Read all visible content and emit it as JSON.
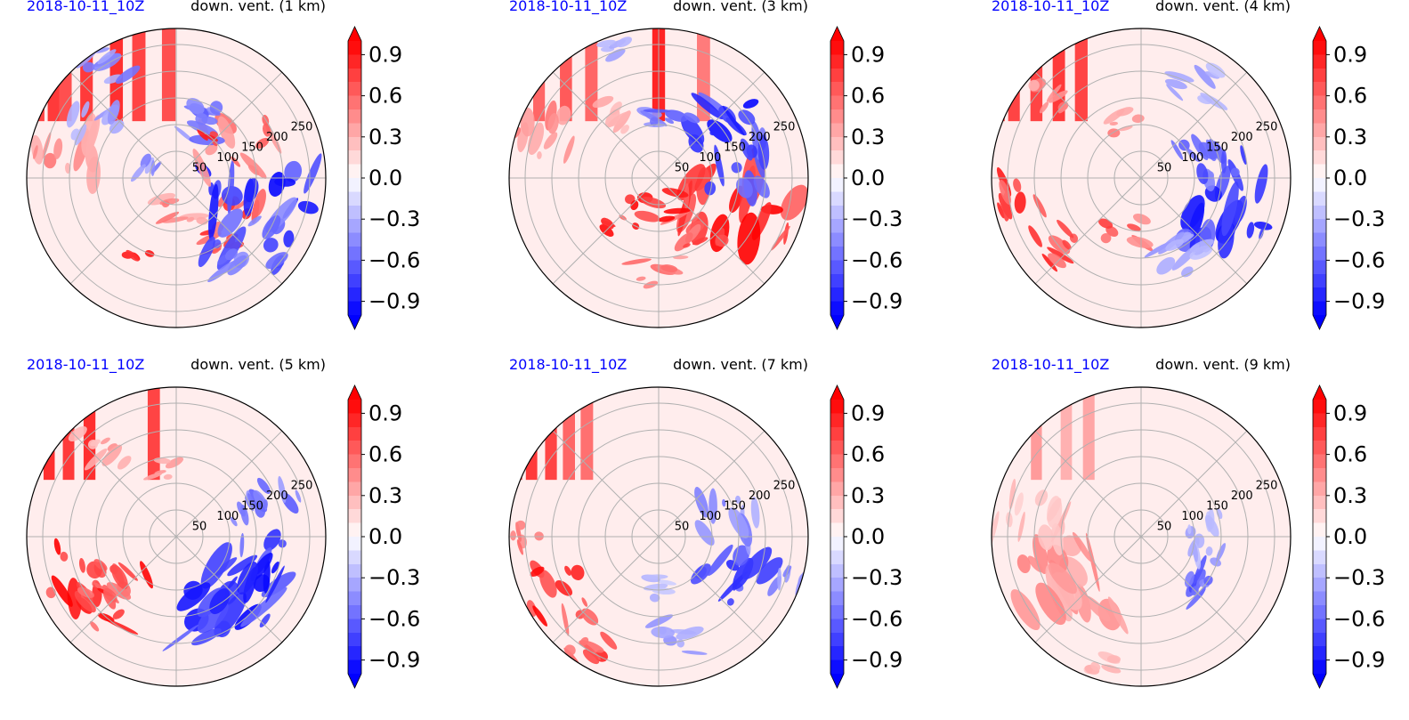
{
  "figure": {
    "colormap": {
      "negative": "#0000ff",
      "zero": "#ffffff",
      "positive": "#ff0000"
    }
  },
  "chart_data": [
    {
      "type": "heatmap",
      "projection": "polar",
      "date": "2018-10-11_10Z",
      "title": "down. vent. (1 km)",
      "ring_labels": [
        "50",
        "100",
        "150",
        "200",
        "250"
      ],
      "rlim": [
        0,
        280
      ],
      "colorbar": {
        "range": [
          -1,
          1
        ],
        "ticks": [
          "0.9",
          "0.6",
          "0.3",
          "0.0",
          "−0.3",
          "−0.6",
          "−0.9"
        ],
        "extend": "both"
      },
      "stripe_rays": [
        [
          -0.92,
          0.85
        ],
        [
          -0.82,
          0.9
        ],
        [
          -0.74,
          0.8
        ],
        [
          -0.6,
          0.9
        ],
        [
          -0.4,
          0.95
        ],
        [
          -0.25,
          0.85
        ],
        [
          -0.05,
          0.8
        ]
      ],
      "blobs": [
        [
          150,
          60,
          35,
          0.8
        ],
        [
          140,
          30,
          40,
          0.8
        ],
        [
          165,
          20,
          90,
          -0.9
        ],
        [
          130,
          330,
          60,
          0.6
        ],
        [
          120,
          290,
          50,
          -0.6
        ],
        [
          170,
          45,
          70,
          -0.7
        ],
        [
          60,
          80,
          40,
          0.5
        ],
        [
          70,
          200,
          25,
          -0.5
        ],
        [
          200,
          190,
          60,
          0.5
        ],
        [
          250,
          240,
          40,
          -0.5
        ],
        [
          190,
          215,
          40,
          -0.4
        ],
        [
          165,
          115,
          20,
          0.9
        ],
        [
          95,
          310,
          15,
          0.9
        ]
      ]
    },
    {
      "type": "heatmap",
      "projection": "polar",
      "date": "2018-10-11_10Z",
      "title": "down. vent. (3 km)",
      "ring_labels": [
        "50",
        "100",
        "150",
        "200",
        "250"
      ],
      "rlim": [
        0,
        280
      ],
      "colorbar": {
        "range": [
          -1,
          1
        ],
        "ticks": [
          "0.9",
          "0.6",
          "0.3",
          "0.0",
          "−0.3",
          "−0.6",
          "−0.9"
        ],
        "extend": "both"
      },
      "stripe_rays": [
        [
          -0.95,
          0.95
        ],
        [
          -0.8,
          0.7
        ],
        [
          -0.62,
          0.75
        ],
        [
          -0.45,
          0.7
        ],
        [
          0.0,
          1.0
        ],
        [
          0.3,
          0.6
        ]
      ],
      "blobs": [
        [
          160,
          20,
          90,
          1.0
        ],
        [
          130,
          55,
          40,
          0.7
        ],
        [
          150,
          350,
          60,
          -0.8
        ],
        [
          140,
          320,
          60,
          -0.9
        ],
        [
          170,
          90,
          40,
          0.6
        ],
        [
          60,
          100,
          40,
          0.9
        ],
        [
          230,
          200,
          50,
          0.5
        ],
        [
          150,
          230,
          35,
          0.4
        ],
        [
          120,
          280,
          40,
          -0.6
        ],
        [
          250,
          250,
          25,
          -0.4
        ],
        [
          110,
          130,
          25,
          0.9
        ]
      ]
    },
    {
      "type": "heatmap",
      "projection": "polar",
      "date": "2018-10-11_10Z",
      "title": "down. vent. (4 km)",
      "ring_labels": [
        "50",
        "100",
        "150",
        "200",
        "250"
      ],
      "rlim": [
        0,
        280
      ],
      "colorbar": {
        "range": [
          -1,
          1
        ],
        "ticks": [
          "0.9",
          "0.6",
          "0.3",
          "0.0",
          "−0.3",
          "−0.6",
          "−0.9"
        ],
        "extend": "both"
      },
      "stripe_rays": [
        [
          -0.95,
          0.9
        ],
        [
          -0.85,
          0.85
        ],
        [
          -0.7,
          0.85
        ],
        [
          -0.55,
          0.9
        ],
        [
          -0.4,
          0.85
        ]
      ],
      "blobs": [
        [
          220,
          170,
          40,
          0.9
        ],
        [
          200,
          140,
          40,
          0.9
        ],
        [
          160,
          20,
          80,
          -0.9
        ],
        [
          150,
          350,
          45,
          -0.8
        ],
        [
          130,
          330,
          40,
          -0.6
        ],
        [
          100,
          110,
          35,
          0.7
        ],
        [
          170,
          60,
          50,
          -0.4
        ],
        [
          240,
          220,
          40,
          0.5
        ],
        [
          110,
          250,
          30,
          0.5
        ],
        [
          200,
          300,
          40,
          -0.4
        ]
      ]
    },
    {
      "type": "heatmap",
      "projection": "polar",
      "date": "2018-10-11_10Z",
      "title": "down. vent. (5 km)",
      "ring_labels": [
        "50",
        "100",
        "150",
        "200",
        "250"
      ],
      "rlim": [
        0,
        280
      ],
      "colorbar": {
        "range": [
          -1,
          1
        ],
        "ticks": [
          "0.9",
          "0.6",
          "0.3",
          "0.0",
          "−0.3",
          "−0.6",
          "−0.9"
        ],
        "extend": "both"
      },
      "stripe_rays": [
        [
          -0.85,
          0.95
        ],
        [
          -0.72,
          0.9
        ],
        [
          -0.58,
          0.95
        ],
        [
          -0.15,
          0.85
        ]
      ],
      "blobs": [
        [
          200,
          160,
          60,
          1.0
        ],
        [
          180,
          130,
          50,
          0.9
        ],
        [
          130,
          140,
          40,
          0.9
        ],
        [
          160,
          50,
          90,
          -0.9
        ],
        [
          140,
          20,
          60,
          -0.9
        ],
        [
          200,
          340,
          40,
          -0.6
        ],
        [
          140,
          340,
          30,
          -0.5
        ],
        [
          220,
          230,
          40,
          0.4
        ],
        [
          130,
          260,
          25,
          0.4
        ]
      ]
    },
    {
      "type": "heatmap",
      "projection": "polar",
      "date": "2018-10-11_10Z",
      "title": "down. vent. (7 km)",
      "ring_labels": [
        "50",
        "100",
        "150",
        "200",
        "250"
      ],
      "rlim": [
        0,
        280
      ],
      "colorbar": {
        "range": [
          -1,
          1
        ],
        "ticks": [
          "0.9",
          "0.6",
          "0.3",
          "0.0",
          "−0.3",
          "−0.6",
          "−0.9"
        ],
        "extend": "both"
      },
      "stripe_rays": [
        [
          -0.95,
          0.9
        ],
        [
          -0.85,
          0.9
        ],
        [
          -0.72,
          0.85
        ],
        [
          -0.6,
          0.7
        ],
        [
          -0.48,
          0.65
        ]
      ],
      "blobs": [
        [
          220,
          150,
          60,
          0.9
        ],
        [
          240,
          120,
          40,
          0.8
        ],
        [
          240,
          180,
          30,
          0.6
        ],
        [
          170,
          30,
          60,
          -0.8
        ],
        [
          130,
          345,
          50,
          -0.5
        ],
        [
          250,
          20,
          30,
          -0.5
        ],
        [
          190,
          80,
          40,
          -0.4
        ],
        [
          100,
          80,
          30,
          -0.3
        ]
      ]
    },
    {
      "type": "heatmap",
      "projection": "polar",
      "date": "2018-10-11_10Z",
      "title": "down. vent. (9 km)",
      "ring_labels": [
        "50",
        "100",
        "150",
        "200",
        "250"
      ],
      "rlim": [
        0,
        280
      ],
      "colorbar": {
        "range": [
          -1,
          1
        ],
        "ticks": [
          "0.9",
          "0.6",
          "0.3",
          "0.0",
          "−0.3",
          "−0.6",
          "−0.9"
        ],
        "extend": "both"
      },
      "stripe_rays": [
        [
          -0.7,
          0.45
        ],
        [
          -0.5,
          0.35
        ],
        [
          -0.35,
          0.4
        ]
      ],
      "blobs": [
        [
          170,
          150,
          90,
          0.45
        ],
        [
          210,
          190,
          60,
          0.3
        ],
        [
          160,
          30,
          45,
          -0.7
        ],
        [
          110,
          10,
          40,
          -0.4
        ],
        [
          120,
          350,
          30,
          -0.3
        ],
        [
          250,
          110,
          30,
          0.3
        ]
      ]
    }
  ]
}
